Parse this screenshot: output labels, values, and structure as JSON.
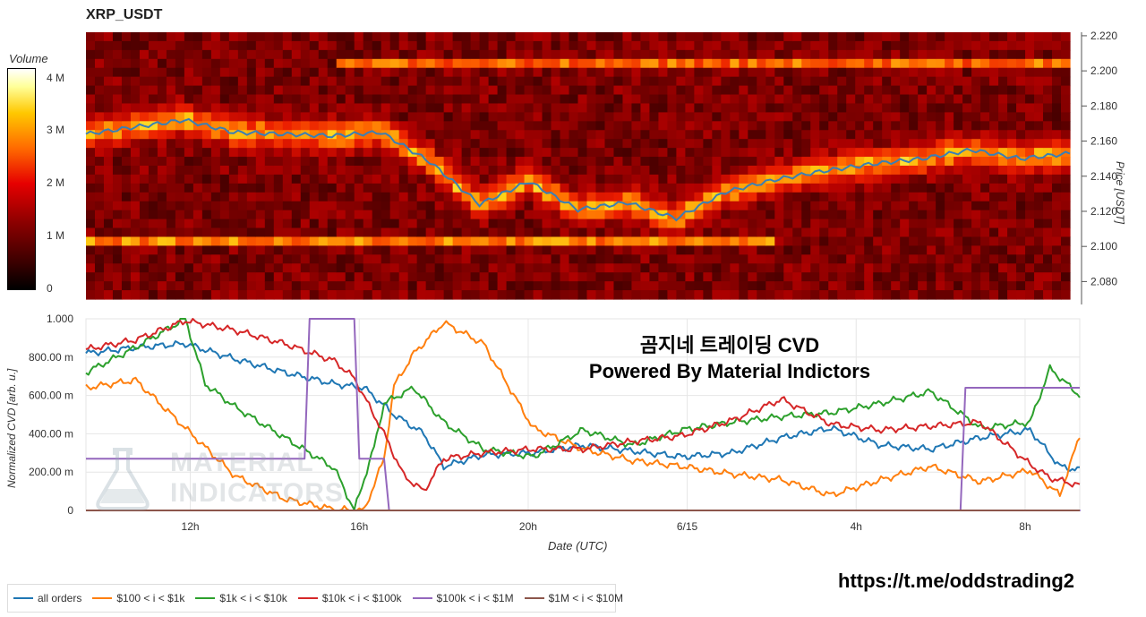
{
  "title": "XRP_USDT",
  "volume_scale": {
    "title": "Volume",
    "ticks": [
      "4 M",
      "3 M",
      "2 M",
      "1 M",
      "0"
    ]
  },
  "overlay": {
    "line1": "곰지네 트레이딩 CVD",
    "line2": "Powered By Material Indictors"
  },
  "watermark": {
    "line1": "MATERIAL",
    "line2": "INDICATORS"
  },
  "footer_link": "https://t.me/oddstrading2",
  "chart_data": [
    {
      "type": "heatmap",
      "title": "XRP_USDT",
      "ylabel": "Price [USDT]",
      "ylim": [
        2.07,
        2.222
      ],
      "y_ticks": [
        "2.220",
        "2.200",
        "2.180",
        "2.160",
        "2.140",
        "2.120",
        "2.100",
        "2.080"
      ],
      "x_ticks": [
        "12h",
        "16h",
        "20h",
        "6/15",
        "4h",
        "8h"
      ],
      "price_series": {
        "name": "price",
        "x": [
          0,
          5,
          10,
          15,
          20,
          25,
          30,
          35,
          40,
          45,
          50,
          55,
          60,
          65,
          70,
          75,
          80,
          85,
          90,
          95,
          100
        ],
        "y": [
          2.164,
          2.168,
          2.172,
          2.165,
          2.164,
          2.163,
          2.165,
          2.148,
          2.124,
          2.137,
          2.121,
          2.125,
          2.116,
          2.131,
          2.138,
          2.143,
          2.147,
          2.15,
          2.155,
          2.15,
          2.153
        ]
      },
      "colormap": [
        "#000000",
        "#8b0000",
        "#e60000",
        "#ff6a00",
        "#ffc800",
        "#ffff99",
        "#ffffff"
      ],
      "zlim": [
        0,
        4200000
      ]
    },
    {
      "type": "line",
      "xlabel": "Date (UTC)",
      "ylabel": "Normalized CVD [arb. u.]",
      "ylim": [
        0,
        1000
      ],
      "y_ticks": [
        "1.000",
        "800.00 m",
        "600.00 m",
        "400.00 m",
        "200.00 m",
        "0"
      ],
      "x_ticks": [
        "12h",
        "16h",
        "20h",
        "6/15",
        "4h",
        "8h"
      ],
      "series": [
        {
          "name": "all orders",
          "color": "#1f77b4",
          "x": [
            0,
            5,
            10,
            15,
            20,
            25,
            28,
            31,
            34,
            36,
            40,
            45,
            50,
            55,
            60,
            65,
            70,
            75,
            80,
            85,
            90,
            95,
            98,
            100
          ],
          "y": [
            820,
            850,
            870,
            790,
            720,
            660,
            640,
            500,
            400,
            230,
            290,
            300,
            340,
            310,
            280,
            300,
            380,
            430,
            340,
            320,
            380,
            420,
            230,
            210
          ]
        },
        {
          "name": "$100 < i < $1k",
          "color": "#ff7f0e",
          "x": [
            0,
            5,
            10,
            15,
            20,
            25,
            28,
            30,
            31,
            33,
            36,
            40,
            45,
            50,
            55,
            60,
            65,
            70,
            75,
            80,
            85,
            90,
            95,
            98,
            100
          ],
          "y": [
            640,
            680,
            430,
            180,
            60,
            5,
            0,
            270,
            650,
            820,
            980,
            870,
            430,
            320,
            260,
            230,
            190,
            160,
            80,
            160,
            230,
            150,
            210,
            80,
            390
          ]
        },
        {
          "name": "$1k < i < $10k",
          "color": "#2ca02c",
          "x": [
            0,
            5,
            10,
            12,
            15,
            20,
            25,
            27,
            29,
            30,
            33,
            36,
            40,
            45,
            50,
            55,
            60,
            65,
            70,
            75,
            80,
            85,
            90,
            95,
            97,
            100
          ],
          "y": [
            720,
            850,
            1000,
            660,
            540,
            380,
            220,
            0,
            330,
            560,
            640,
            460,
            320,
            280,
            420,
            340,
            420,
            460,
            490,
            510,
            560,
            620,
            430,
            460,
            740,
            600
          ]
        },
        {
          "name": "$10k < i < $100k",
          "color": "#d62728",
          "x": [
            0,
            5,
            10,
            15,
            20,
            25,
            27,
            30,
            32,
            34,
            36,
            40,
            45,
            50,
            55,
            60,
            65,
            70,
            75,
            80,
            85,
            90,
            95,
            97,
            100
          ],
          "y": [
            840,
            890,
            990,
            940,
            870,
            780,
            690,
            400,
            180,
            100,
            270,
            300,
            320,
            320,
            360,
            390,
            470,
            580,
            450,
            420,
            440,
            460,
            240,
            170,
            130
          ]
        },
        {
          "name": "$100k < i < $1M",
          "color": "#9467bd",
          "x": [
            0,
            22,
            22.5,
            27,
            27.5,
            30,
            30.5,
            31,
            31.5,
            100
          ],
          "y": [
            270,
            270,
            1000,
            1000,
            270,
            270,
            0,
            0,
            0,
            0
          ],
          "x2": [
            88,
            88.5,
            100
          ],
          "y2": [
            0,
            640,
            640
          ]
        },
        {
          "name": "$1M < i < $10M",
          "color": "#8c564b",
          "x": [
            0,
            100
          ],
          "y": [
            0,
            0
          ]
        }
      ]
    }
  ]
}
